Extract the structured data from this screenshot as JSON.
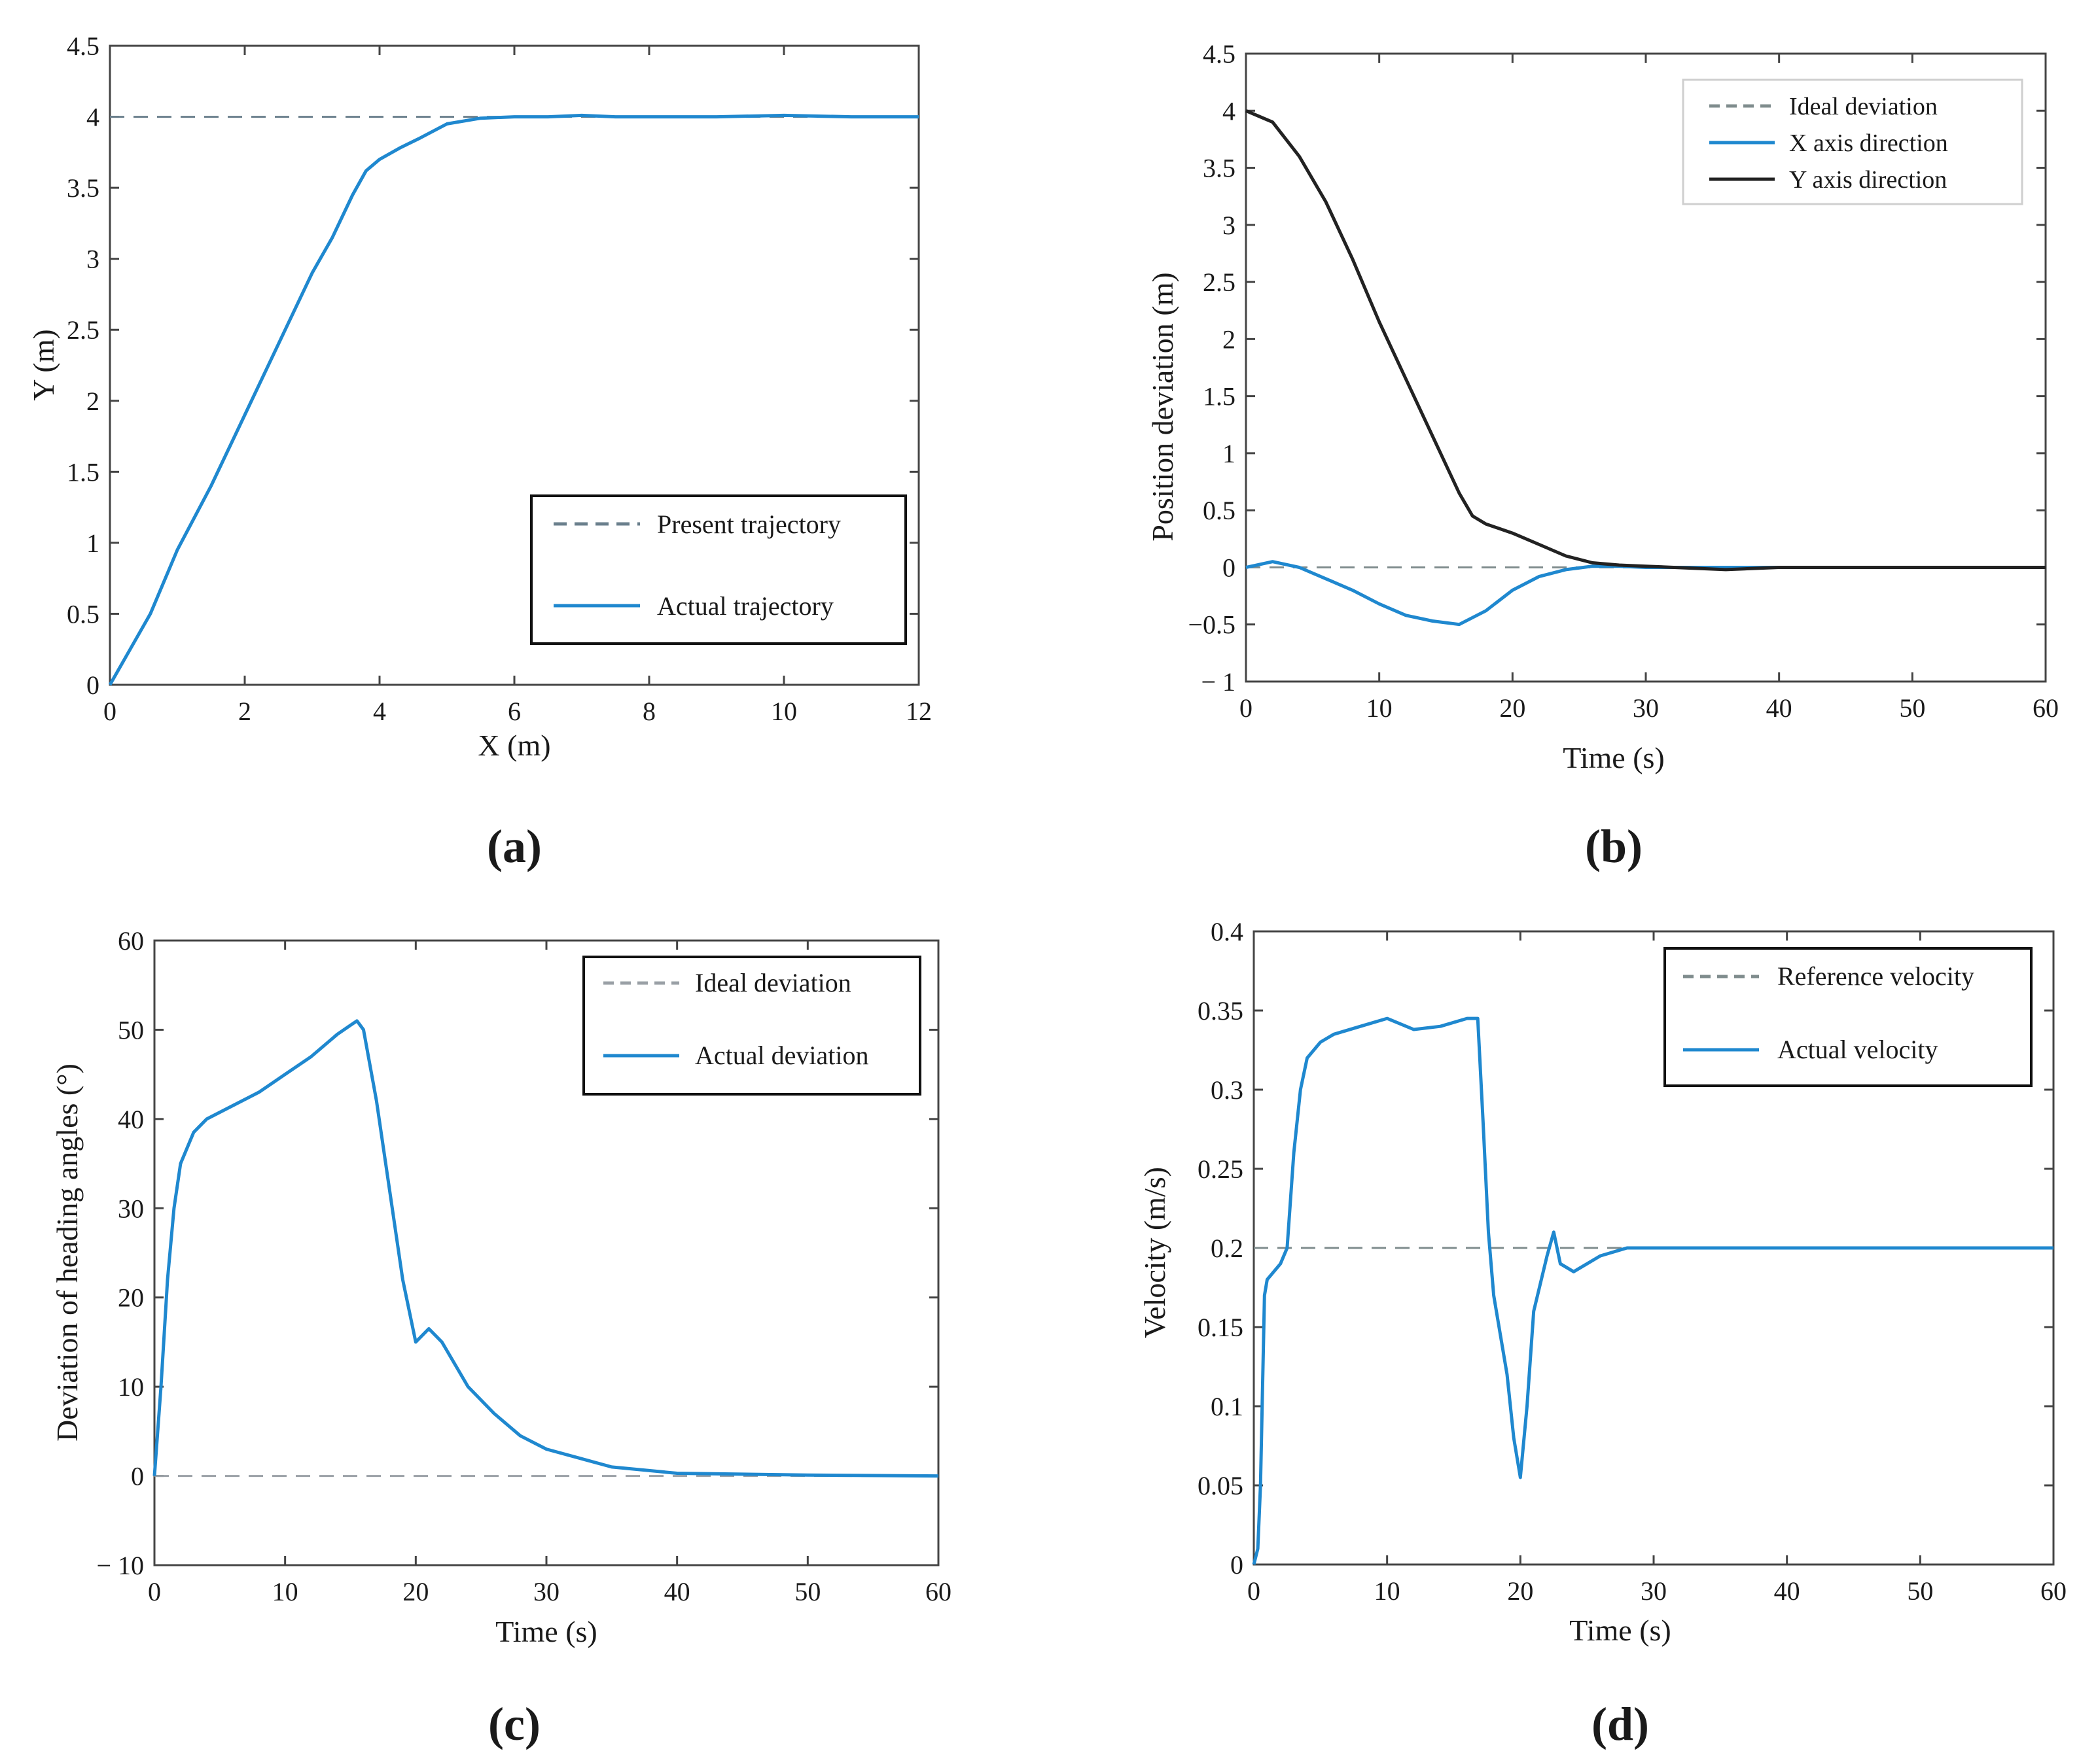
{
  "figure_type": "four-panel line chart figure",
  "chart_data": [
    {
      "type": "line",
      "panel_label": "(a)",
      "title": "",
      "xlabel": "X (m)",
      "ylabel": "Y (m)",
      "xlim": [
        0,
        12
      ],
      "ylim": [
        0,
        4.5
      ],
      "xticks": [
        "0",
        "2",
        "4",
        "6",
        "8",
        "10",
        "12"
      ],
      "yticks": [
        "0",
        "0.5",
        "1",
        "1.5",
        "2",
        "2.5",
        "3",
        "3.5",
        "4",
        "4.5"
      ],
      "grid": false,
      "legend_position": "bottom-right",
      "series": [
        {
          "name": "Present trajectory",
          "style": "dashed",
          "color": "#6a7f8c",
          "x": [
            0,
            12
          ],
          "y": [
            4,
            4
          ]
        },
        {
          "name": "Actual trajectory",
          "style": "solid",
          "color": "#1f88cf",
          "x": [
            0,
            0.3,
            0.6,
            1.0,
            1.5,
            2.0,
            2.5,
            3.0,
            3.3,
            3.6,
            3.8,
            4.0,
            4.3,
            4.6,
            5.0,
            5.5,
            6.0,
            6.5,
            7.0,
            7.5,
            8.0,
            9.0,
            10.0,
            11.0,
            12.0
          ],
          "y": [
            0,
            0.25,
            0.5,
            0.95,
            1.4,
            1.9,
            2.4,
            2.9,
            3.15,
            3.45,
            3.62,
            3.7,
            3.78,
            3.85,
            3.95,
            3.99,
            4.0,
            4.0,
            4.01,
            4.0,
            4.0,
            4.0,
            4.01,
            4.0,
            4.0
          ]
        }
      ]
    },
    {
      "type": "line",
      "panel_label": "(b)",
      "title": "",
      "xlabel": "Time (s)",
      "ylabel": "Position deviation (m)",
      "xlim": [
        0,
        60
      ],
      "ylim": [
        -1,
        4.5
      ],
      "xticks": [
        "0",
        "10",
        "20",
        "30",
        "40",
        "50",
        "60"
      ],
      "yticks": [
        "− 1",
        "−0.5",
        "0",
        "0.5",
        "1",
        "1.5",
        "2",
        "2.5",
        "3",
        "3.5",
        "4",
        "4.5"
      ],
      "grid": false,
      "legend_position": "top-right",
      "series": [
        {
          "name": "Ideal deviation",
          "style": "dashed",
          "color": "#7f8c8d",
          "x": [
            0,
            60
          ],
          "y": [
            0,
            0
          ]
        },
        {
          "name": "X axis direction",
          "style": "solid",
          "color": "#1f88cf",
          "x": [
            0,
            2,
            4,
            6,
            8,
            10,
            12,
            14,
            16,
            18,
            20,
            22,
            24,
            26,
            28,
            30,
            40,
            50,
            60
          ],
          "y": [
            0,
            0.05,
            0,
            -0.1,
            -0.2,
            -0.32,
            -0.42,
            -0.47,
            -0.5,
            -0.38,
            -0.2,
            -0.08,
            -0.02,
            0.01,
            0.01,
            0.0,
            0.0,
            0.0,
            0.0
          ]
        },
        {
          "name": "Y axis direction",
          "style": "solid",
          "color": "#222222",
          "x": [
            0,
            2,
            4,
            6,
            8,
            10,
            12,
            14,
            16,
            17,
            18,
            20,
            22,
            24,
            26,
            28,
            30,
            36,
            40,
            50,
            60
          ],
          "y": [
            4.0,
            3.9,
            3.6,
            3.2,
            2.7,
            2.15,
            1.65,
            1.15,
            0.65,
            0.45,
            0.38,
            0.3,
            0.2,
            0.1,
            0.04,
            0.02,
            0.01,
            -0.02,
            0.0,
            0.0,
            0.0
          ]
        }
      ]
    },
    {
      "type": "line",
      "panel_label": "(c)",
      "title": "",
      "xlabel": "Time (s)",
      "ylabel": "Deviation of heading angles (°)",
      "xlim": [
        0,
        60
      ],
      "ylim": [
        -10,
        60
      ],
      "xticks": [
        "0",
        "10",
        "20",
        "30",
        "40",
        "50",
        "60"
      ],
      "yticks": [
        "− 10",
        "0",
        "10",
        "20",
        "30",
        "40",
        "50",
        "60"
      ],
      "grid": false,
      "legend_position": "top-right",
      "series": [
        {
          "name": "Ideal deviation",
          "style": "dashed",
          "color": "#9aa0a6",
          "x": [
            0,
            60
          ],
          "y": [
            0,
            0
          ]
        },
        {
          "name": "Actual deviation",
          "style": "solid",
          "color": "#1f88cf",
          "x": [
            0,
            0.5,
            1,
            1.5,
            2,
            3,
            4,
            6,
            8,
            10,
            12,
            14,
            15,
            15.5,
            16,
            17,
            18,
            19,
            20,
            21,
            22,
            24,
            26,
            28,
            30,
            35,
            40,
            50,
            60
          ],
          "y": [
            0,
            10,
            22,
            30,
            35,
            38.5,
            40,
            41.5,
            43,
            45,
            47,
            49.5,
            50.5,
            51,
            50,
            42,
            32,
            22,
            15,
            16.5,
            15,
            10,
            7,
            4.5,
            3,
            1,
            0.3,
            0.1,
            0
          ]
        }
      ]
    },
    {
      "type": "line",
      "panel_label": "(d)",
      "title": "",
      "xlabel": "Time (s)",
      "ylabel": "Velocity (m/s)",
      "xlim": [
        0,
        60
      ],
      "ylim": [
        0,
        0.4
      ],
      "xticks": [
        "0",
        "10",
        "20",
        "30",
        "40",
        "50",
        "60"
      ],
      "yticks": [
        "0",
        "0.05",
        "0.1",
        "0.15",
        "0.2",
        "0.25",
        "0.3",
        "0.35",
        "0.4"
      ],
      "grid": false,
      "legend_position": "top-right",
      "series": [
        {
          "name": "Reference velocity",
          "style": "dashed",
          "color": "#7f8c8d",
          "x": [
            0,
            60
          ],
          "y": [
            0.2,
            0.2
          ]
        },
        {
          "name": "Actual velocity",
          "style": "solid",
          "color": "#1f88cf",
          "x": [
            0,
            0.3,
            0.5,
            0.8,
            1.0,
            2.0,
            2.5,
            3.0,
            3.5,
            4.0,
            5.0,
            6.0,
            8.0,
            10.0,
            12.0,
            14.0,
            16.0,
            16.8,
            17.2,
            17.6,
            18.0,
            19.0,
            19.5,
            20.0,
            20.5,
            21.0,
            22.0,
            22.5,
            23.0,
            24.0,
            26.0,
            28.0,
            30.0,
            35.0,
            40.0,
            45.0,
            50.0,
            55.0,
            60.0
          ],
          "y": [
            0,
            0.01,
            0.05,
            0.17,
            0.18,
            0.19,
            0.2,
            0.26,
            0.3,
            0.32,
            0.33,
            0.335,
            0.34,
            0.345,
            0.338,
            0.34,
            0.345,
            0.345,
            0.28,
            0.21,
            0.17,
            0.12,
            0.08,
            0.055,
            0.1,
            0.16,
            0.195,
            0.21,
            0.19,
            0.185,
            0.195,
            0.2,
            0.2,
            0.2,
            0.2,
            0.2,
            0.2,
            0.2,
            0.2
          ]
        }
      ]
    }
  ]
}
